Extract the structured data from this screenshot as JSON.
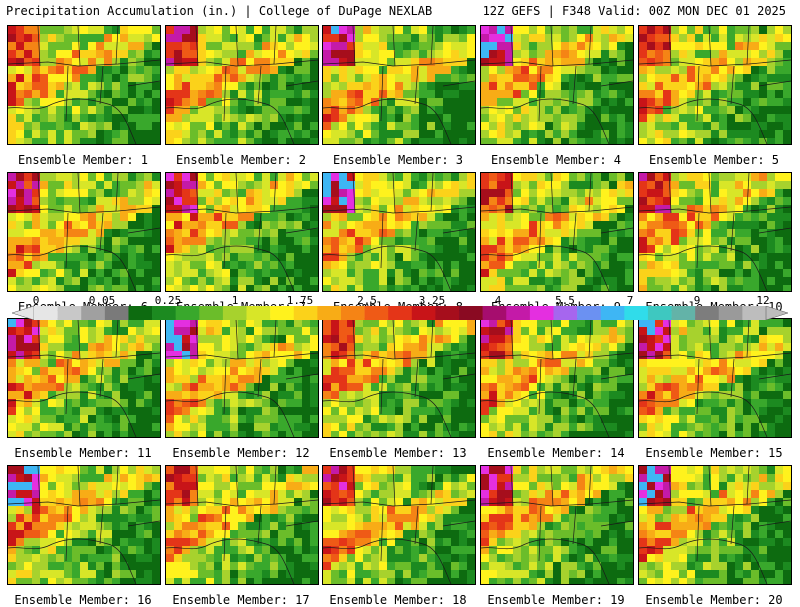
{
  "header": {
    "left": "Precipitation Accumulation (in.) | College of DuPage NEXLAB",
    "right": "12Z GEFS | F348 Valid: 00Z MON DEC 01 2025"
  },
  "colorbar": {
    "labels": [
      "0",
      "0.05",
      "0.25",
      "1",
      "1.75",
      "2.5",
      "3.25",
      "4",
      "5.5",
      "7",
      "9",
      "12"
    ],
    "colors": [
      "#e6e6e6",
      "#c8c8c8",
      "#a0a0a0",
      "#7a7a7a",
      "#0d6b10",
      "#1c8a20",
      "#39a82c",
      "#6bbd2a",
      "#a7d22d",
      "#d8e628",
      "#fff21d",
      "#fbd21a",
      "#f8ac16",
      "#f58415",
      "#ef5a16",
      "#e43518",
      "#c81418",
      "#a60e1c",
      "#8a0a22",
      "#a60d6e",
      "#c41aa8",
      "#e42fe0",
      "#a666ee",
      "#6b91f2",
      "#3eb6f4",
      "#30dcea",
      "#3ec8c0",
      "#63b3a8",
      "#7d7d7d",
      "#9a9a9a",
      "#bdbdbd"
    ]
  },
  "members": [
    {
      "label": "Ensemble Member: 1"
    },
    {
      "label": "Ensemble Member: 2"
    },
    {
      "label": "Ensemble Member: 3"
    },
    {
      "label": "Ensemble Member: 4"
    },
    {
      "label": "Ensemble Member: 5"
    },
    {
      "label": "Ensemble Member: 6"
    },
    {
      "label": "Ensemble Member: 7"
    },
    {
      "label": "Ensemble Member: 8"
    },
    {
      "label": "Ensemble Member: 9"
    },
    {
      "label": "Ensemble Member: 10"
    },
    {
      "label": "Ensemble Member: 11"
    },
    {
      "label": "Ensemble Member: 12"
    },
    {
      "label": "Ensemble Member: 13"
    },
    {
      "label": "Ensemble Member: 14"
    },
    {
      "label": "Ensemble Member: 15"
    },
    {
      "label": "Ensemble Member: 16"
    },
    {
      "label": "Ensemble Member: 17"
    },
    {
      "label": "Ensemble Member: 18"
    },
    {
      "label": "Ensemble Member: 19"
    },
    {
      "label": "Ensemble Member: 20"
    }
  ]
}
